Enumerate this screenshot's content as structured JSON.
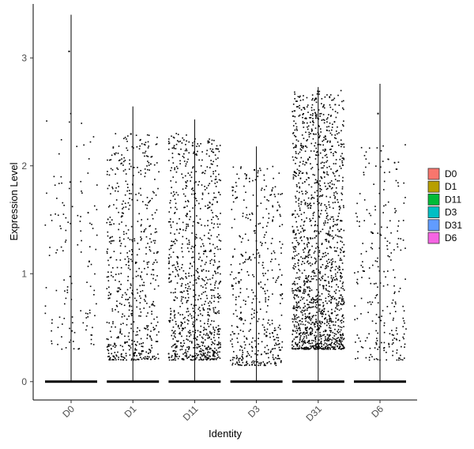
{
  "chart_data": {
    "type": "violin-jitter",
    "title": "",
    "xlabel": "Identity",
    "ylabel": "Expression Level",
    "categories": [
      "D0",
      "D1",
      "D11",
      "D3",
      "D31",
      "D6"
    ],
    "yticks": [
      0,
      1,
      2,
      3
    ],
    "ylim": [
      -0.17,
      3.5
    ],
    "grid": false,
    "legend": {
      "placement": "right",
      "entries": [
        {
          "label": "D0",
          "color": "#F8766D"
        },
        {
          "label": "D1",
          "color": "#B79F00"
        },
        {
          "label": "D11",
          "color": "#00BA38"
        },
        {
          "label": "D3",
          "color": "#00BFC4"
        },
        {
          "label": "D31",
          "color": "#619CFF"
        },
        {
          "label": "D6",
          "color": "#F564E3"
        }
      ]
    },
    "series": [
      {
        "category": "D0",
        "max": 3.4,
        "expressing_range": [
          0.3,
          2.5
        ],
        "expressing_count": 130
      },
      {
        "category": "D1",
        "max": 2.55,
        "expressing_range": [
          0.2,
          2.3
        ],
        "expressing_count": 600
      },
      {
        "category": "D11",
        "max": 2.43,
        "expressing_range": [
          0.2,
          2.3
        ],
        "expressing_count": 900
      },
      {
        "category": "D3",
        "max": 2.18,
        "expressing_range": [
          0.15,
          2.0
        ],
        "expressing_count": 450
      },
      {
        "category": "D31",
        "max": 2.73,
        "expressing_range": [
          0.3,
          2.7
        ],
        "expressing_count": 1500
      },
      {
        "category": "D6",
        "max": 2.76,
        "expressing_range": [
          0.2,
          2.2
        ],
        "expressing_count": 250
      }
    ]
  }
}
